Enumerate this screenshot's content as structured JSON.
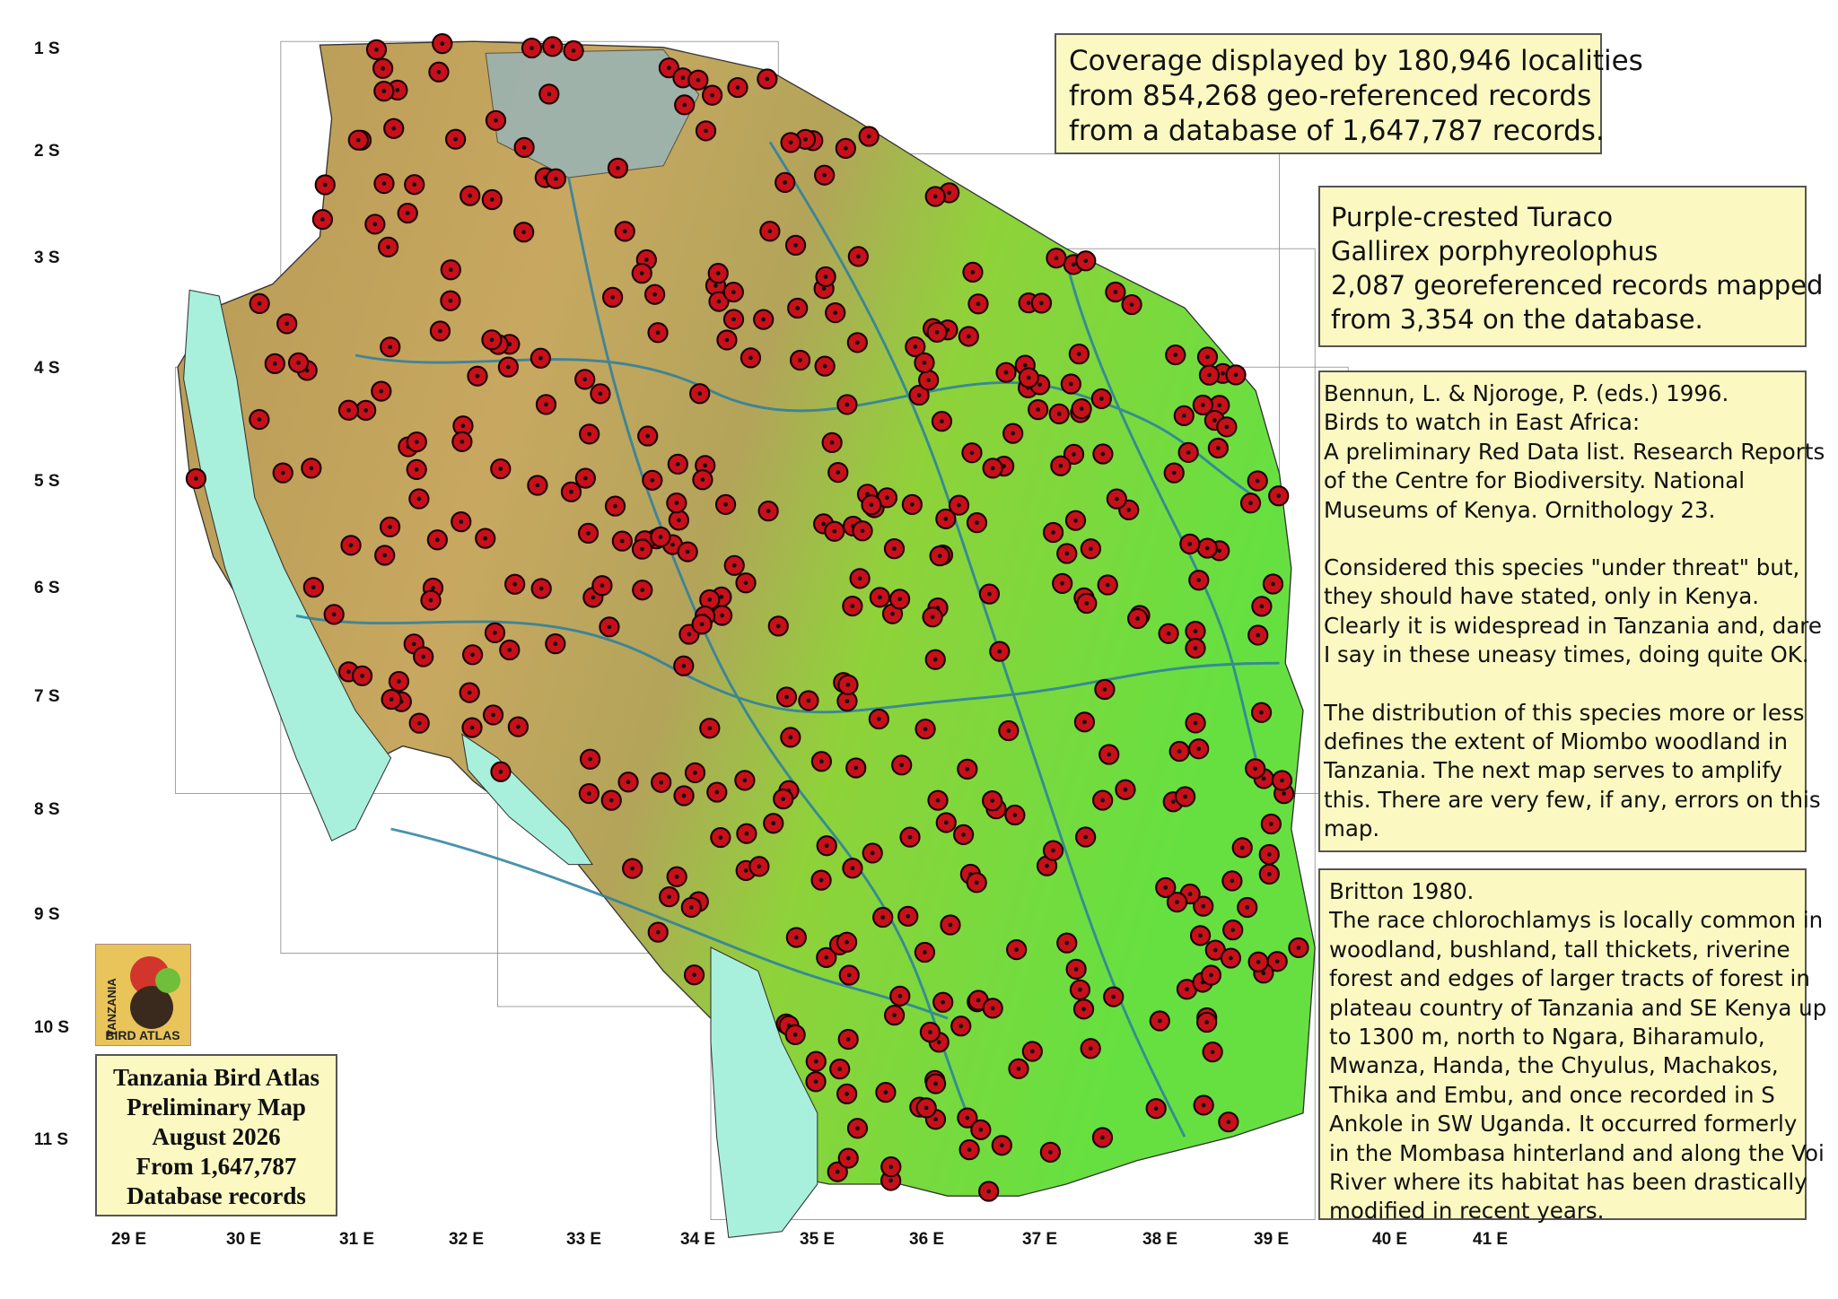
{
  "latitude_labels": [
    "1 S",
    "2 S",
    "3 S",
    "4 S",
    "5 S",
    "6 S",
    "7 S",
    "8 S",
    "9 S",
    "10 S",
    "11 S"
  ],
  "longitude_labels": [
    "29 E",
    "30 E",
    "31 E",
    "32 E",
    "33 E",
    "34 E",
    "35 E",
    "36 E",
    "37 E",
    "38 E",
    "39 E",
    "40 E",
    "41 E"
  ],
  "coverage_box": {
    "lines": [
      "Coverage displayed by 180,946 localities",
      "from 854,268 geo-referenced records",
      "from a database of 1,647,787 records."
    ]
  },
  "species_box": {
    "lines": [
      "Purple-crested Turaco",
      "Gallirex porphyreolophus",
      "2,087 georeferenced records mapped",
      "from 3,354 on the database."
    ]
  },
  "reference_box": {
    "paragraphs": [
      [
        "Bennun, L. & Njoroge, P. (eds.) 1996.",
        "Birds to watch in East Africa:",
        "A preliminary Red Data list. Research Reports",
        "of the Centre for Biodiversity. National",
        "Museums of Kenya. Ornithology 23."
      ],
      [
        "Considered this species \"under threat\" but,",
        "they should have stated, only in Kenya.",
        "Clearly it is widespread in Tanzania and, dare",
        "I say in these uneasy times, doing quite OK."
      ],
      [
        "The distribution of this species more or less",
        "defines the extent of Miombo woodland in",
        "Tanzania. The next map serves to amplify",
        "this. There are very few, if any, errors on this",
        "map."
      ]
    ]
  },
  "britton_box": {
    "lines": [
      "Britton 1980.",
      "The race chlorochlamys is locally common in",
      "woodland, bushland, tall thickets, riverine",
      "forest and edges of larger tracts of forest in",
      "plateau country of Tanzania and SE Kenya up",
      "to 1300 m, north to Ngara, Biharamulo,",
      "Mwanza, Handa, the Chyulus, Machakos,",
      "Thika and Embu, and once recorded in S",
      "Ankole in SW Uganda.  It occurred formerly",
      "in the Mombasa hinterland and along the Voi",
      "River where its habitat has been drastically",
      "modified in recent years."
    ]
  },
  "logo": {
    "lines": [
      "TANZANIA",
      "BIRD ATLAS"
    ]
  },
  "title_box": {
    "lines": [
      "Tanzania Bird Atlas",
      "Preliminary Map",
      "August 2026",
      "From 1,647,787",
      "Database records"
    ]
  }
}
